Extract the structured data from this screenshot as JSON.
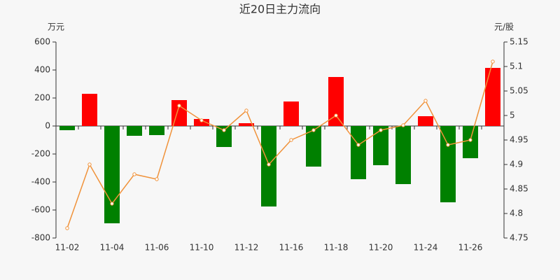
{
  "chart_data": {
    "type": "bar",
    "title": "近20日主力流向",
    "y_label": "万元",
    "y2_label": "元/股",
    "categories": [
      "11-02",
      null,
      "11-04",
      null,
      "11-06",
      null,
      "11-10",
      null,
      "11-12",
      null,
      "11-16",
      null,
      "11-18",
      null,
      "11-20",
      null,
      "11-24",
      null,
      "11-26",
      null
    ],
    "series": [
      {
        "type": "bar",
        "positive_color": "#ff0000",
        "negative_color": "#008000",
        "values": [
          -30,
          230,
          -695,
          -70,
          -65,
          185,
          50,
          -150,
          20,
          -575,
          175,
          -290,
          350,
          -380,
          -280,
          -415,
          70,
          -545,
          -230,
          415
        ]
      },
      {
        "type": "line",
        "axis": "y2",
        "color": "#f0923a",
        "values": [
          4.77,
          4.9,
          4.82,
          4.88,
          4.87,
          5.02,
          4.99,
          4.97,
          5.01,
          4.9,
          4.95,
          4.97,
          5.0,
          4.94,
          4.97,
          4.98,
          5.03,
          4.94,
          4.95,
          5.11
        ]
      }
    ],
    "ylim": [
      -800,
      600
    ],
    "yticks": [
      -800,
      -600,
      -400,
      -200,
      0,
      200,
      400,
      600
    ],
    "y2lim": [
      4.75,
      5.15
    ],
    "y2ticks": [
      4.75,
      4.8,
      4.85,
      4.9,
      4.95,
      5,
      5.05,
      5.1,
      5.15
    ],
    "grid": false
  }
}
